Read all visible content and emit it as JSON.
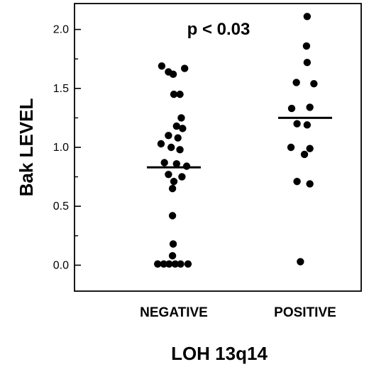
{
  "chart_data": {
    "type": "scatter",
    "title": "",
    "xlabel": "LOH 13q14",
    "ylabel": "Bak LEVEL",
    "categories": [
      "NEGATIVE",
      "POSITIVE"
    ],
    "ylim": [
      -0.22,
      2.22
    ],
    "yticks": [
      0.0,
      0.5,
      1.0,
      1.5,
      2.0
    ],
    "ytick_labels": [
      "0.0",
      "0.5",
      "1.0",
      "1.5",
      "2.0"
    ],
    "annotation": "p < 0.03",
    "grid": false,
    "legend": "none",
    "marker_color": "#000000",
    "series": [
      {
        "category": "NEGATIVE",
        "median": 0.83,
        "points": [
          {
            "offset": -0.18,
            "y": 1.69
          },
          {
            "offset": -0.08,
            "y": 1.64
          },
          {
            "offset": -0.01,
            "y": 1.62
          },
          {
            "offset": 0.16,
            "y": 1.67
          },
          {
            "offset": 0.0,
            "y": 1.45
          },
          {
            "offset": 0.09,
            "y": 1.45
          },
          {
            "offset": 0.11,
            "y": 1.25
          },
          {
            "offset": 0.04,
            "y": 1.18
          },
          {
            "offset": 0.13,
            "y": 1.16
          },
          {
            "offset": -0.08,
            "y": 1.1
          },
          {
            "offset": 0.06,
            "y": 1.08
          },
          {
            "offset": -0.19,
            "y": 1.03
          },
          {
            "offset": -0.04,
            "y": 1.0
          },
          {
            "offset": 0.09,
            "y": 0.98
          },
          {
            "offset": -0.14,
            "y": 0.87
          },
          {
            "offset": 0.04,
            "y": 0.86
          },
          {
            "offset": 0.19,
            "y": 0.84
          },
          {
            "offset": -0.08,
            "y": 0.77
          },
          {
            "offset": 0.12,
            "y": 0.75
          },
          {
            "offset": 0.0,
            "y": 0.71
          },
          {
            "offset": -0.02,
            "y": 0.65
          },
          {
            "offset": -0.02,
            "y": 0.42
          },
          {
            "offset": -0.01,
            "y": 0.18
          },
          {
            "offset": -0.02,
            "y": 0.08
          },
          {
            "offset": -0.24,
            "y": 0.01
          },
          {
            "offset": -0.15,
            "y": 0.01
          },
          {
            "offset": -0.07,
            "y": 0.01
          },
          {
            "offset": 0.02,
            "y": 0.01
          },
          {
            "offset": 0.1,
            "y": 0.01
          },
          {
            "offset": 0.21,
            "y": 0.01
          }
        ]
      },
      {
        "category": "POSITIVE",
        "median": 1.25,
        "points": [
          {
            "offset": 0.03,
            "y": 2.11
          },
          {
            "offset": 0.02,
            "y": 1.86
          },
          {
            "offset": 0.03,
            "y": 1.72
          },
          {
            "offset": -0.13,
            "y": 1.55
          },
          {
            "offset": 0.13,
            "y": 1.54
          },
          {
            "offset": -0.2,
            "y": 1.33
          },
          {
            "offset": 0.07,
            "y": 1.34
          },
          {
            "offset": -0.12,
            "y": 1.2
          },
          {
            "offset": 0.03,
            "y": 1.19
          },
          {
            "offset": -0.21,
            "y": 1.0
          },
          {
            "offset": 0.07,
            "y": 0.99
          },
          {
            "offset": -0.01,
            "y": 0.94
          },
          {
            "offset": -0.12,
            "y": 0.71
          },
          {
            "offset": 0.07,
            "y": 0.69
          },
          {
            "offset": -0.07,
            "y": 0.03
          }
        ]
      }
    ]
  }
}
